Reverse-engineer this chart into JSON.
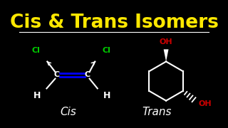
{
  "background_color": "#000000",
  "title": "Cis & Trans Isomers",
  "title_color": "#FFE800",
  "title_fontsize": 19,
  "divider_color": "white",
  "cis_label": "Cis",
  "trans_label": "Trans",
  "label_color": "white",
  "label_fontsize": 11,
  "cl_color": "#00CC00",
  "oh_color": "#CC0000",
  "double_bond_color": "#0000FF",
  "atom_color": "white",
  "bond_color": "white"
}
